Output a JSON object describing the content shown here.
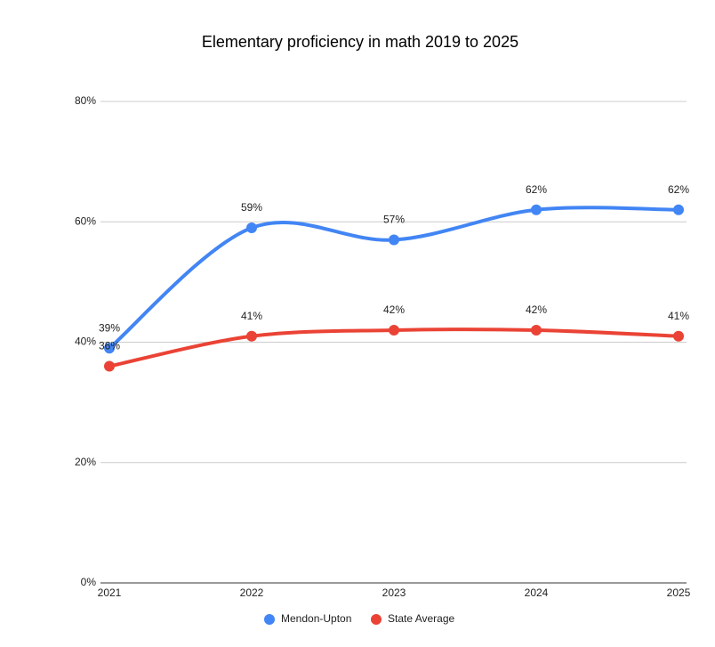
{
  "chart_data": {
    "type": "line",
    "title": "Elementary proficiency in math 2019 to 2025",
    "categories": [
      "2021",
      "2022",
      "2023",
      "2024",
      "2025"
    ],
    "series": [
      {
        "name": "Mendon-Upton",
        "color": "#4285f4",
        "values": [
          39,
          59,
          57,
          62,
          62
        ],
        "value_labels": [
          "39%",
          "59%",
          "57%",
          "62%",
          "62%"
        ]
      },
      {
        "name": "State Average",
        "color": "#ea4335",
        "values": [
          36,
          41,
          42,
          42,
          41
        ],
        "value_labels": [
          "36%",
          "41%",
          "42%",
          "42%",
          "41%"
        ]
      }
    ],
    "ylim": [
      0,
      80
    ],
    "yticks": [
      {
        "value": 0,
        "label": "0%"
      },
      {
        "value": 20,
        "label": "20%"
      },
      {
        "value": 40,
        "label": "40%"
      },
      {
        "value": 60,
        "label": "60%"
      },
      {
        "value": 80,
        "label": "80%"
      }
    ],
    "grid": true,
    "legend": "bottom"
  }
}
